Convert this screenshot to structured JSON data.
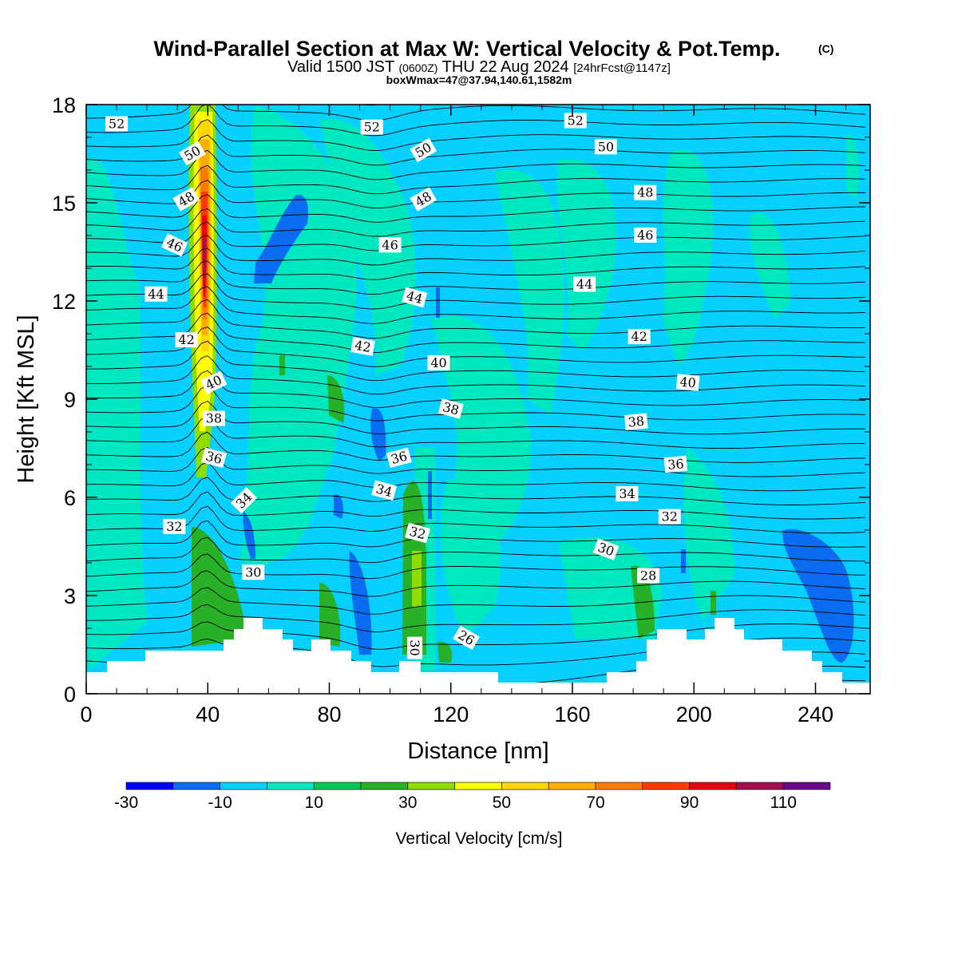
{
  "chart_data": {
    "type": "heatmap",
    "title": "Wind-Parallel Section at Max W: Vertical Velocity & Pot.Temp.",
    "title_mark": "(C)",
    "subtitle_main": "Valid 1500 JST",
    "subtitle_utc": "(0600Z)",
    "subtitle_date": "THU 22 Aug 2024",
    "subtitle_fcst": "[24hrFcst@1147z]",
    "subtitle2": "boxWmax=47@37.94,140.61,1582m",
    "xlabel": "Distance [nm]",
    "ylabel": "Height [Kft MSL]",
    "xlim": [
      0,
      258
    ],
    "ylim": [
      0,
      18
    ],
    "x_ticks": [
      "0",
      "40",
      "80",
      "120",
      "160",
      "200",
      "240"
    ],
    "x_tick_values": [
      0,
      40,
      80,
      120,
      160,
      200,
      240
    ],
    "y_ticks": [
      "0",
      "3",
      "6",
      "9",
      "12",
      "15",
      "18"
    ],
    "y_tick_values": [
      0,
      3,
      6,
      9,
      12,
      15,
      18
    ],
    "colorbar": {
      "label": "Vertical Velocity [cm/s]",
      "tick_labels": [
        "-30",
        "-10",
        "10",
        "30",
        "50",
        "70",
        "90",
        "110"
      ],
      "tick_values": [
        -30,
        -10,
        10,
        30,
        50,
        70,
        90,
        110
      ],
      "bounds": [
        -30,
        -20,
        -10,
        0,
        10,
        20,
        30,
        40,
        50,
        60,
        70,
        80,
        90,
        100,
        110,
        120
      ],
      "colors": [
        "#0000ff",
        "#0a6cf0",
        "#05d0ff",
        "#00e8c0",
        "#00c850",
        "#28b028",
        "#90dc00",
        "#ffff00",
        "#ffd800",
        "#ffae00",
        "#ff7a00",
        "#ff3a00",
        "#e80010",
        "#a01050",
        "#6a0a8a"
      ]
    },
    "background_color": "#05d0ff",
    "isentrope_labels": [
      {
        "text": "52",
        "x": 10,
        "y": 17.4,
        "angle": 0
      },
      {
        "text": "52",
        "x": 94,
        "y": 17.3,
        "angle": 0
      },
      {
        "text": "52",
        "x": 161,
        "y": 17.5,
        "angle": 0
      },
      {
        "text": "50",
        "x": 35,
        "y": 16.5,
        "angle": 30
      },
      {
        "text": "50",
        "x": 111,
        "y": 16.6,
        "angle": 30
      },
      {
        "text": "50",
        "x": 171,
        "y": 16.7,
        "angle": 0
      },
      {
        "text": "48",
        "x": 33,
        "y": 15.1,
        "angle": 30
      },
      {
        "text": "48",
        "x": 111,
        "y": 15.1,
        "angle": 30
      },
      {
        "text": "48",
        "x": 184,
        "y": 15.3,
        "angle": 0
      },
      {
        "text": "46",
        "x": 29,
        "y": 13.7,
        "angle": -25
      },
      {
        "text": "46",
        "x": 100,
        "y": 13.7,
        "angle": 0
      },
      {
        "text": "46",
        "x": 184,
        "y": 14.0,
        "angle": 0
      },
      {
        "text": "44",
        "x": 23,
        "y": 12.2,
        "angle": 0
      },
      {
        "text": "44",
        "x": 108,
        "y": 12.1,
        "angle": -15
      },
      {
        "text": "44",
        "x": 164,
        "y": 12.5,
        "angle": 0
      },
      {
        "text": "42",
        "x": 33,
        "y": 10.8,
        "angle": 0
      },
      {
        "text": "42",
        "x": 91,
        "y": 10.6,
        "angle": -10
      },
      {
        "text": "42",
        "x": 182,
        "y": 10.9,
        "angle": 0
      },
      {
        "text": "40",
        "x": 42,
        "y": 9.5,
        "angle": 25
      },
      {
        "text": "40",
        "x": 116,
        "y": 10.1,
        "angle": 0
      },
      {
        "text": "40",
        "x": 198,
        "y": 9.5,
        "angle": -5
      },
      {
        "text": "38",
        "x": 42,
        "y": 8.4,
        "angle": 0
      },
      {
        "text": "38",
        "x": 120,
        "y": 8.7,
        "angle": -15
      },
      {
        "text": "38",
        "x": 181,
        "y": 8.3,
        "angle": 5
      },
      {
        "text": "36",
        "x": 42,
        "y": 7.2,
        "angle": -15
      },
      {
        "text": "36",
        "x": 103,
        "y": 7.2,
        "angle": 15
      },
      {
        "text": "36",
        "x": 194,
        "y": 7.0,
        "angle": 5
      },
      {
        "text": "34",
        "x": 52,
        "y": 5.9,
        "angle": 45
      },
      {
        "text": "34",
        "x": 98,
        "y": 6.2,
        "angle": -15
      },
      {
        "text": "34",
        "x": 178,
        "y": 6.1,
        "angle": 0
      },
      {
        "text": "32",
        "x": 29,
        "y": 5.1,
        "angle": 0
      },
      {
        "text": "32",
        "x": 109,
        "y": 4.9,
        "angle": -15
      },
      {
        "text": "32",
        "x": 192,
        "y": 5.4,
        "angle": 0
      },
      {
        "text": "30",
        "x": 55,
        "y": 3.7,
        "angle": 0
      },
      {
        "text": "30",
        "x": 108,
        "y": 1.4,
        "angle": -90
      },
      {
        "text": "30",
        "x": 171,
        "y": 4.4,
        "angle": -20
      },
      {
        "text": "28",
        "x": 185,
        "y": 3.6,
        "angle": 0
      },
      {
        "text": "26",
        "x": 125,
        "y": 1.7,
        "angle": -30
      }
    ]
  }
}
